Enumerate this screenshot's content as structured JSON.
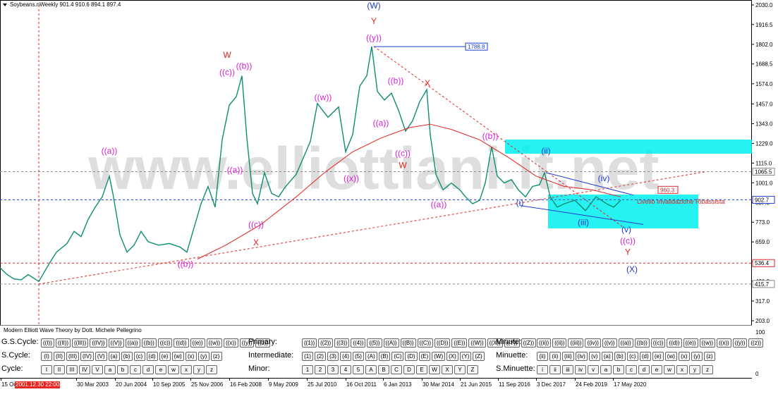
{
  "header": {
    "title": "Soybeans.nWeekly  901.4 910.6 894.1 897.4"
  },
  "watermark": "www.elliottiani.it.net",
  "chart_data": {
    "type": "line",
    "symbol": "Soybeans.n",
    "timeframe": "Weekly",
    "ohlc": {
      "open": 901.4,
      "high": 910.6,
      "low": 894.1,
      "close": 897.4
    },
    "y_ticks": [
      "2030.0",
      "1916.5",
      "1802.0",
      "1688.5",
      "1574.0",
      "1457.0",
      "1343.0",
      "1229.0",
      "1115.0",
      "1001.0",
      "887.0",
      "773.0",
      "659.0",
      "545.0",
      "431.0",
      "317.0",
      "203.0"
    ],
    "y_range": [
      203,
      2030
    ],
    "x_ticks": [
      "15 Oct",
      "30 Mar 2003",
      "20 Jun 2004",
      "10 Sep 2005",
      "25 Nov 2006",
      "16 Feb 2008",
      "9 May 2009",
      "25 Jul 2010",
      "16 Oct 2011",
      "6 Jan 2013",
      "30 Mar 2014",
      "21 Jun 2015",
      "11 Sep 2016",
      "3 Dec 2017",
      "24 Feb 2019",
      "17 May 2020"
    ],
    "cursor_date": "2001.12.30 22:00",
    "price_tags": [
      {
        "text": "1065.5",
        "value": 1065.5,
        "style": "gray"
      },
      {
        "text": "902.7",
        "value": 902.7,
        "style": "blue"
      },
      {
        "text": "536.4",
        "value": 536.4,
        "style": "red"
      },
      {
        "text": "415.7",
        "value": 415.7,
        "style": "gray"
      }
    ],
    "level_boxes": [
      {
        "text": "1788.8",
        "value": 1788.8,
        "color": "#1a3fd0"
      },
      {
        "text": "960.3",
        "value": 960.3,
        "color": "#d8262a"
      }
    ],
    "invalidation_text": "Livello Invalidazione Ribassista",
    "series": [
      {
        "name": "Soybeans.n Weekly",
        "color": "#0d8e72",
        "points": [
          [
            0,
            510
          ],
          [
            10,
            470
          ],
          [
            20,
            445
          ],
          [
            30,
            440
          ],
          [
            40,
            470
          ],
          [
            55,
            430
          ],
          [
            70,
            535
          ],
          [
            80,
            600
          ],
          [
            95,
            650
          ],
          [
            105,
            720
          ],
          [
            115,
            690
          ],
          [
            125,
            790
          ],
          [
            135,
            860
          ],
          [
            145,
            920
          ],
          [
            155,
            1040
          ],
          [
            160,
            940
          ],
          [
            170,
            700
          ],
          [
            180,
            600
          ],
          [
            190,
            640
          ],
          [
            200,
            720
          ],
          [
            210,
            660
          ],
          [
            225,
            640
          ],
          [
            240,
            650
          ],
          [
            255,
            630
          ],
          [
            265,
            600
          ],
          [
            275,
            740
          ],
          [
            285,
            880
          ],
          [
            295,
            980
          ],
          [
            305,
            860
          ],
          [
            315,
            1250
          ],
          [
            325,
            1450
          ],
          [
            335,
            1500
          ],
          [
            343,
            1620
          ],
          [
            350,
            1260
          ],
          [
            358,
            940
          ],
          [
            365,
            880
          ],
          [
            375,
            1060
          ],
          [
            385,
            940
          ],
          [
            395,
            920
          ],
          [
            405,
            980
          ],
          [
            420,
            1050
          ],
          [
            440,
            1240
          ],
          [
            450,
            1460
          ],
          [
            465,
            1380
          ],
          [
            480,
            1440
          ],
          [
            490,
            1180
          ],
          [
            500,
            1280
          ],
          [
            510,
            1560
          ],
          [
            520,
            1620
          ],
          [
            527,
            1790
          ],
          [
            535,
            1530
          ],
          [
            545,
            1480
          ],
          [
            555,
            1520
          ],
          [
            565,
            1420
          ],
          [
            575,
            1300
          ],
          [
            585,
            1360
          ],
          [
            595,
            1470
          ],
          [
            605,
            1540
          ],
          [
            610,
            1280
          ],
          [
            618,
            1050
          ],
          [
            628,
            960
          ],
          [
            640,
            1000
          ],
          [
            652,
            960
          ],
          [
            660,
            920
          ],
          [
            670,
            880
          ],
          [
            680,
            900
          ],
          [
            688,
            1000
          ],
          [
            697,
            1210
          ],
          [
            705,
            1040
          ],
          [
            715,
            1000
          ],
          [
            725,
            1020
          ],
          [
            735,
            960
          ],
          [
            745,
            920
          ],
          [
            755,
            980
          ],
          [
            765,
            990
          ],
          [
            772,
            1060
          ],
          [
            780,
            920
          ],
          [
            790,
            860
          ],
          [
            800,
            880
          ],
          [
            815,
            900
          ],
          [
            830,
            840
          ],
          [
            845,
            920
          ],
          [
            860,
            880
          ],
          [
            870,
            860
          ],
          [
            880,
            900
          ]
        ]
      },
      {
        "name": "Moving average",
        "color": "#e3221d",
        "points": [
          [
            280,
            560
          ],
          [
            320,
            640
          ],
          [
            370,
            760
          ],
          [
            420,
            920
          ],
          [
            460,
            1060
          ],
          [
            500,
            1180
          ],
          [
            540,
            1260
          ],
          [
            580,
            1320
          ],
          [
            610,
            1340
          ],
          [
            640,
            1310
          ],
          [
            680,
            1250
          ],
          [
            720,
            1150
          ],
          [
            760,
            1040
          ],
          [
            800,
            980
          ],
          [
            840,
            960
          ],
          [
            880,
            920
          ]
        ]
      }
    ],
    "trendlines": [
      {
        "name": "support",
        "color": "#e3221d",
        "dash": true,
        "from": [
          55,
          415
        ],
        "to": [
          1000,
          1065
        ]
      },
      {
        "name": "wxy-resistance",
        "color": "#e3221d",
        "dash": true,
        "from": [
          530,
          1790
        ],
        "to": [
          885,
          740
        ]
      }
    ],
    "wave_labels": [
      {
        "text": "(W)",
        "color": "#1f3bd0",
        "x": 530,
        "value": 2010
      },
      {
        "text": "Y",
        "color": "#e3221d",
        "x": 530,
        "value": 1920
      },
      {
        "text": "((y))",
        "color": "#d61fd3",
        "x": 530,
        "value": 1825
      },
      {
        "text": "W",
        "color": "#e3221d",
        "x": 322,
        "value": 1725
      },
      {
        "text": "((b))",
        "color": "#d61fd3",
        "x": 346,
        "value": 1660
      },
      {
        "text": "((c))",
        "color": "#d61fd3",
        "x": 322,
        "value": 1625
      },
      {
        "text": "((w))",
        "color": "#d61fd3",
        "x": 458,
        "value": 1480
      },
      {
        "text": "((b))",
        "color": "#d61fd3",
        "x": 561,
        "value": 1575
      },
      {
        "text": "X",
        "color": "#e3221d",
        "x": 606,
        "value": 1560
      },
      {
        "text": "((a))",
        "color": "#d61fd3",
        "x": 540,
        "value": 1330
      },
      {
        "text": "((c))",
        "color": "#d61fd3",
        "x": 571,
        "value": 1155
      },
      {
        "text": "W",
        "color": "#e3221d",
        "x": 571,
        "value": 1085
      },
      {
        "text": "((x))",
        "color": "#d61fd3",
        "x": 498,
        "value": 1010
      },
      {
        "text": "((a))",
        "color": "#d61fd3",
        "x": 155,
        "value": 1170
      },
      {
        "text": "((a))",
        "color": "#d61fd3",
        "x": 333,
        "value": 1060
      },
      {
        "text": "((c))",
        "color": "#d61fd3",
        "x": 363,
        "value": 743
      },
      {
        "text": "X",
        "color": "#e3221d",
        "x": 363,
        "value": 640
      },
      {
        "text": "((b))",
        "color": "#d61fd3",
        "x": 263,
        "value": 515
      },
      {
        "text": "((b))",
        "color": "#d61fd3",
        "x": 695,
        "value": 1255
      },
      {
        "text": "((a))",
        "color": "#d61fd3",
        "x": 622,
        "value": 860
      },
      {
        "text": "(ii)",
        "color": "#1f3bd0",
        "x": 774,
        "value": 1170
      },
      {
        "text": "(i)",
        "color": "#1f3bd0",
        "x": 737,
        "value": 870
      },
      {
        "text": "(iii)",
        "color": "#1f3bd0",
        "x": 827,
        "value": 755
      },
      {
        "text": "(iv)",
        "color": "#1f3bd0",
        "x": 856,
        "value": 1010
      },
      {
        "text": "(v)",
        "color": "#1f3bd0",
        "x": 888,
        "value": 715
      },
      {
        "text": "((c))",
        "color": "#d61fd3",
        "x": 890,
        "value": 650
      },
      {
        "text": "Y",
        "color": "#e3221d",
        "x": 890,
        "value": 585
      },
      {
        "text": "(X)",
        "color": "#1f3bd0",
        "x": 896,
        "value": 485
      }
    ]
  },
  "panel": {
    "title": "Modern Elliott Wave Theory by Dott. Michele Pellegrino",
    "rows": [
      {
        "label": "G.S.Cycle:",
        "buttons": [
          "((I))",
          "((II))",
          "((III))",
          "((IV))",
          "((V))",
          "((a))",
          "((b))",
          "((c))",
          "((d))",
          "((e))",
          "((w))",
          "((x))",
          "((y))",
          "((z))"
        ]
      },
      {
        "label": "S.Cycle:",
        "buttons": [
          "(I)",
          "(II)",
          "(III)",
          "(IV)",
          "(V)",
          "(a)",
          "(b)",
          "(c)",
          "(d)",
          "(e)",
          "(w)",
          "(x)",
          "(y)",
          "(z)"
        ]
      },
      {
        "label": "Cycle:",
        "buttons": [
          "I",
          "II",
          "III",
          "IV",
          "V",
          "a",
          "b",
          "c",
          "d",
          "e",
          "w",
          "x",
          "y",
          "z"
        ]
      }
    ],
    "rows_mid": [
      {
        "label": "Primary:",
        "buttons": [
          "((1))",
          "((2))",
          "((3))",
          "((4))",
          "((5))",
          "((A))",
          "((B))",
          "((C))",
          "((D))",
          "((E))",
          "((W))",
          "((X))",
          "((Y))",
          "((Z))"
        ]
      },
      {
        "label": "Intermediate:",
        "buttons": [
          "(1)",
          "(2)",
          "(3)",
          "(4)",
          "(5)",
          "(A)",
          "(B)",
          "(C)",
          "(D)",
          "(E)",
          "(W)",
          "(X)",
          "(Y)",
          "(Z)"
        ]
      },
      {
        "label": "Minor:",
        "buttons": [
          "1",
          "2",
          "3",
          "4",
          "5",
          "A",
          "B",
          "C",
          "D",
          "E",
          "W",
          "X",
          "Y",
          "Z"
        ]
      }
    ],
    "rows_right": [
      {
        "label": "Minute:",
        "buttons": [
          "((ii))",
          "((ii))",
          "((iii))",
          "((iv))",
          "((v))",
          "((a))",
          "((b))",
          "((c))",
          "((d))",
          "((e))",
          "((w))",
          "((x))",
          "((y))",
          "((z))"
        ]
      },
      {
        "label": "Minuette:",
        "buttons": [
          "(ii)",
          "(ii)",
          "(iii)",
          "(iv)",
          "(v)",
          "(a)",
          "(b)",
          "(c)",
          "(d)",
          "(e)",
          "(w)",
          "(x)",
          "(y)",
          "(z)"
        ]
      },
      {
        "label": "S.Minuette:",
        "buttons": [
          "i",
          "ii",
          "iii",
          "iv",
          "v",
          "a",
          "b",
          "c",
          "d",
          "e",
          "w",
          "x",
          "y",
          "z"
        ]
      }
    ],
    "right_scale": [
      "100",
      "0"
    ]
  }
}
